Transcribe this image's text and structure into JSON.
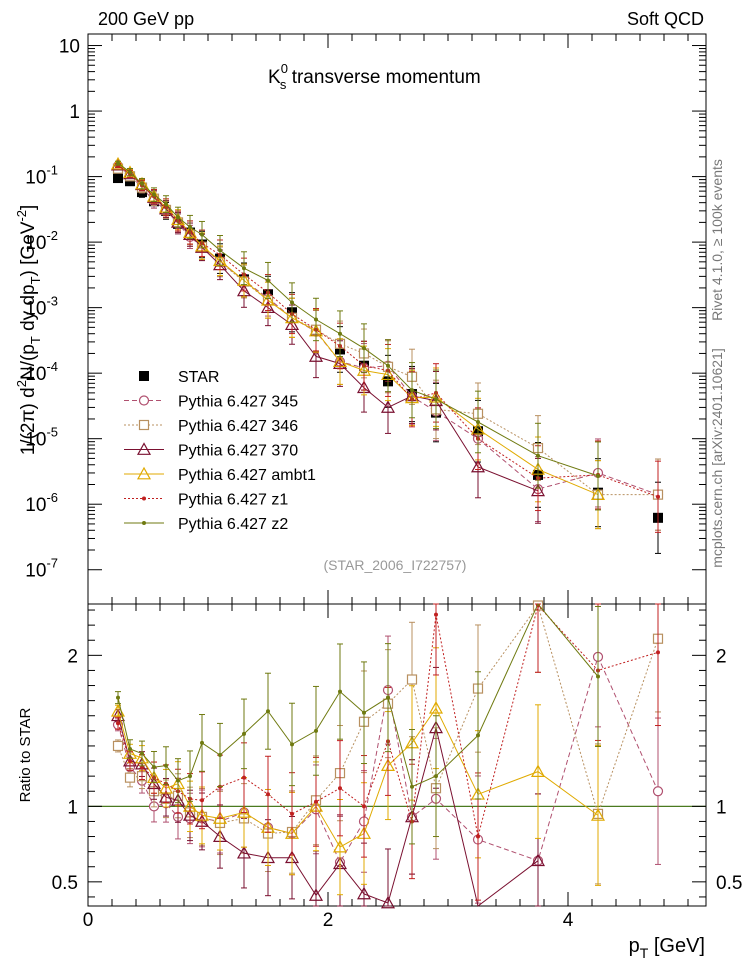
{
  "header": {
    "left": "200 GeV pp",
    "right": "Soft QCD"
  },
  "side_labels": {
    "rivet": "Rivet 4.1.0, ≥ 100k events",
    "mcplots": "mcplots.cern.ch [arXiv:2401.10621]"
  },
  "colors": {
    "STAR": "#000000",
    "p345": "#b0506f",
    "p346": "#b89060",
    "p370": "#7a1030",
    "ambt1": "#e0aa00",
    "z1": "#c02020",
    "z2": "#6f7a10"
  },
  "chart_data": [
    {
      "type": "scatter",
      "title_main": "K",
      "title_sup": "0",
      "title_sub": "s",
      "title_rest": " transverse momentum",
      "ylabel_parts": [
        "1/(2π)  d",
        "2",
        "N/(p",
        "T",
        " dy dp",
        "T",
        ") [GeV",
        "-2",
        "]"
      ],
      "yscale": "log",
      "ylim": [
        3e-08,
        15
      ],
      "xlim": [
        0,
        5.15
      ],
      "y_ticks": [
        {
          "v": 10,
          "base": "10",
          "exp": ""
        },
        {
          "v": 1,
          "base": "1",
          "exp": ""
        },
        {
          "v": 0.1,
          "base": "10",
          "exp": "-1"
        },
        {
          "v": 0.01,
          "base": "10",
          "exp": "-2"
        },
        {
          "v": 0.001,
          "base": "10",
          "exp": "-3"
        },
        {
          "v": 0.0001,
          "base": "10",
          "exp": "-4"
        },
        {
          "v": 1e-05,
          "base": "10",
          "exp": "-5"
        },
        {
          "v": 1e-06,
          "base": "10",
          "exp": "-6"
        },
        {
          "v": 1e-07,
          "base": "10",
          "exp": "-7"
        }
      ],
      "watermark": "(STAR_2006_I722757)",
      "legend_position": "lower-left",
      "series": [
        {
          "name": "STAR",
          "key": "STAR",
          "marker": "square-filled",
          "line": "none",
          "x": [
            0.25,
            0.35,
            0.45,
            0.55,
            0.65,
            0.75,
            0.85,
            0.95,
            1.1,
            1.3,
            1.5,
            1.7,
            1.9,
            2.1,
            2.3,
            2.5,
            2.7,
            2.9,
            3.25,
            3.75,
            4.25,
            4.75
          ],
          "y": [
            0.095,
            0.085,
            0.058,
            0.042,
            0.03,
            0.019,
            0.014,
            0.0092,
            0.0056,
            0.0027,
            0.0016,
            0.00085,
            0.00044,
            0.00023,
            0.00013,
            7.5e-05,
            4.8e-05,
            2.5e-05,
            1.3e-05,
            2.8e-06,
            1.5e-06,
            6.2e-07
          ]
        },
        {
          "name": "Pythia 6.427 345",
          "key": "p345",
          "marker": "circle-open",
          "line": "dashed",
          "x": [
            0.25,
            0.35,
            0.45,
            0.55,
            0.65,
            0.75,
            0.85,
            0.95,
            1.1,
            1.3,
            1.5,
            1.7,
            1.9,
            2.1,
            2.3,
            2.5,
            2.7,
            2.9,
            3.25,
            3.75,
            4.25,
            4.75
          ],
          "y": [
            0.145,
            0.105,
            0.068,
            0.042,
            0.031,
            0.019,
            0.012,
            0.0085,
            0.005,
            0.0026,
            0.0014,
            0.0007,
            0.00043,
            0.00015,
            0.00012,
            0.00013,
            4.4e-05,
            2.6e-05,
            1e-05,
            1.7e-06,
            3e-06,
            1.4e-06
          ]
        },
        {
          "name": "Pythia 6.427 346",
          "key": "p346",
          "marker": "square-open",
          "line": "dotted",
          "x": [
            0.25,
            0.35,
            0.45,
            0.55,
            0.65,
            0.75,
            0.85,
            0.95,
            1.1,
            1.3,
            1.5,
            1.7,
            1.9,
            2.1,
            2.3,
            2.5,
            2.7,
            2.9,
            3.25,
            3.75,
            4.25,
            4.75
          ],
          "y": [
            0.132,
            0.101,
            0.068,
            0.046,
            0.031,
            0.02,
            0.013,
            0.0085,
            0.005,
            0.0025,
            0.0013,
            0.0007,
            0.00046,
            0.00028,
            0.0002,
            0.000125,
            8.8e-05,
            2.8e-05,
            2.4e-05,
            7.2e-06,
            1.4e-06,
            1.4e-06
          ]
        },
        {
          "name": "Pythia 6.427 370",
          "key": "p370",
          "marker": "triangle-open",
          "line": "solid",
          "x": [
            0.25,
            0.35,
            0.45,
            0.55,
            0.65,
            0.75,
            0.85,
            0.95,
            1.1,
            1.3,
            1.5,
            1.7,
            1.9,
            2.1,
            2.3,
            2.5,
            2.7,
            2.9,
            3.25,
            3.75
          ],
          "y": [
            0.15,
            0.11,
            0.075,
            0.048,
            0.032,
            0.02,
            0.013,
            0.0083,
            0.0045,
            0.0018,
            0.001,
            0.00055,
            0.00018,
            0.00014,
            6e-05,
            3e-05,
            4.5e-05,
            3.8e-05,
            3.7e-06,
            1.6e-06
          ]
        },
        {
          "name": "Pythia 6.427 ambt1",
          "key": "ambt1",
          "marker": "triangle-open",
          "line": "solid",
          "x": [
            0.25,
            0.35,
            0.45,
            0.55,
            0.65,
            0.75,
            0.85,
            0.95,
            1.1,
            1.3,
            1.5,
            1.7,
            1.9,
            2.1,
            2.3,
            2.5,
            2.7,
            2.9,
            3.25,
            3.75,
            4.25
          ],
          "y": [
            0.155,
            0.115,
            0.077,
            0.05,
            0.034,
            0.022,
            0.014,
            0.0087,
            0.0052,
            0.0026,
            0.0013,
            0.0007,
            0.00044,
            0.00015,
            0.00011,
            9.5e-05,
            4.2e-05,
            4.3e-05,
            1.4e-05,
            3.4e-06,
            1.4e-06
          ]
        },
        {
          "name": "Pythia 6.427 z1",
          "key": "z1",
          "marker": "dot",
          "line": "dotted",
          "x": [
            0.25,
            0.35,
            0.45,
            0.55,
            0.65,
            0.75,
            0.85,
            0.95,
            1.1,
            1.3,
            1.5,
            1.7,
            1.9,
            2.1,
            2.3,
            2.5,
            2.7,
            2.9,
            3.25,
            3.75,
            4.25,
            4.75
          ],
          "y": [
            0.147,
            0.11,
            0.073,
            0.05,
            0.034,
            0.021,
            0.014,
            0.0096,
            0.0064,
            0.0032,
            0.0017,
            0.0008,
            0.00046,
            0.00026,
            0.00013,
            0.00011,
            4e-05,
            5e-05,
            1e-05,
            2.5e-06,
            2.8e-06,
            1.3e-06
          ]
        },
        {
          "name": "Pythia 6.427 z2",
          "key": "z2",
          "marker": "dot",
          "line": "solid",
          "x": [
            0.25,
            0.35,
            0.45,
            0.55,
            0.65,
            0.75,
            0.85,
            0.95,
            1.1,
            1.3,
            1.5,
            1.7,
            1.9,
            2.1,
            2.3,
            2.5,
            2.7,
            2.9,
            3.25,
            3.75,
            4.25
          ],
          "y": [
            0.16,
            0.117,
            0.078,
            0.053,
            0.038,
            0.024,
            0.017,
            0.013,
            0.0075,
            0.004,
            0.0026,
            0.0012,
            0.00066,
            0.0004,
            0.00024,
            0.00013,
            5.5e-05,
            4e-05,
            1.8e-05,
            5.5e-06,
            2.7e-06
          ]
        }
      ]
    },
    {
      "type": "scatter",
      "ylabel": "Ratio to STAR",
      "xlabel_main": "p",
      "xlabel_sub": "T",
      "xlabel_rest": " [GeV]",
      "ylim": [
        0.34,
        2.34
      ],
      "xlim": [
        0,
        5.15
      ],
      "x_ticks": [
        0,
        2,
        4
      ],
      "y_ticks": [
        {
          "v": 0.5,
          "label": "0.5"
        },
        {
          "v": 1,
          "label": "1"
        },
        {
          "v": 2,
          "label": "2"
        }
      ],
      "series": [
        {
          "name": "Pythia 6.427 345",
          "key": "p345",
          "marker": "circle-open",
          "line": "dashed",
          "x": [
            0.25,
            0.35,
            0.45,
            0.55,
            0.65,
            0.75,
            0.85,
            0.95,
            1.1,
            1.3,
            1.5,
            1.7,
            1.9,
            2.1,
            2.3,
            2.5,
            2.7,
            2.9,
            3.25,
            3.75,
            4.25,
            4.75
          ],
          "y": [
            1.54,
            1.26,
            1.17,
            1,
            1.02,
            0.93,
            0.92,
            0.92,
            0.9,
            0.96,
            0.86,
            0.82,
            0.98,
            0.63,
            0.9,
            1.77,
            0.93,
            1.05,
            0.78,
            0.64,
            1.99,
            1.1
          ]
        },
        {
          "name": "Pythia 6.427 346",
          "key": "p346",
          "marker": "square-open",
          "line": "dotted",
          "x": [
            0.25,
            0.35,
            0.45,
            0.55,
            0.65,
            0.75,
            0.85,
            0.95,
            1.1,
            1.3,
            1.5,
            1.7,
            1.9,
            2.1,
            2.3,
            2.5,
            2.7,
            2.9,
            3.25,
            3.75,
            4.25,
            4.75
          ],
          "y": [
            1.4,
            1.19,
            1.2,
            1.1,
            1.05,
            1.07,
            0.96,
            0.93,
            0.89,
            0.92,
            0.82,
            0.83,
            1.04,
            1.22,
            1.56,
            1.68,
            1.84,
            1.12,
            1.78,
            2.33,
            0.95,
            2.11
          ]
        },
        {
          "name": "Pythia 6.427 370",
          "key": "p370",
          "marker": "triangle-open",
          "line": "solid",
          "x": [
            0.25,
            0.35,
            0.45,
            0.55,
            0.65,
            0.75,
            0.85,
            0.95,
            1.1,
            1.3,
            1.5,
            1.7,
            1.9,
            2.1,
            2.3,
            2.5,
            2.7,
            2.9,
            3.25,
            3.75
          ],
          "y": [
            1.6,
            1.3,
            1.28,
            1.15,
            1.06,
            1.04,
            0.94,
            0.9,
            0.8,
            0.69,
            0.66,
            0.66,
            0.41,
            0.62,
            0.42,
            0.36,
            0.93,
            1.52,
            0.28,
            0.64
          ]
        },
        {
          "name": "Pythia 6.427 ambt1",
          "key": "ambt1",
          "marker": "triangle-open",
          "line": "solid",
          "x": [
            0.25,
            0.35,
            0.45,
            0.55,
            0.65,
            0.75,
            0.85,
            0.95,
            1.1,
            1.3,
            1.5,
            1.7,
            1.9,
            2.1,
            2.3,
            2.5,
            2.7,
            2.9,
            3.25,
            3.75,
            4.25
          ],
          "y": [
            1.63,
            1.35,
            1.32,
            1.19,
            1.12,
            1.15,
            1.0,
            0.94,
            0.92,
            0.96,
            0.86,
            0.82,
            1.0,
            0.73,
            0.82,
            1.27,
            1.42,
            1.65,
            1.08,
            1.23,
            0.94
          ]
        },
        {
          "name": "Pythia 6.427 z1",
          "key": "z1",
          "marker": "dot",
          "line": "dotted",
          "x": [
            0.25,
            0.35,
            0.45,
            0.55,
            0.65,
            0.75,
            0.85,
            0.95,
            1.1,
            1.3,
            1.5,
            1.7,
            1.9,
            2.1,
            2.3,
            2.5,
            2.7,
            2.9,
            3.25,
            3.75,
            4.25,
            4.75
          ],
          "y": [
            1.55,
            1.3,
            1.26,
            1.19,
            1.15,
            1.1,
            1.05,
            1.04,
            1.13,
            1.19,
            1.08,
            0.95,
            1.03,
            1.12,
            1.0,
            1.43,
            0.9,
            2.27,
            0.8,
            2.33,
            1.9,
            2.02
          ]
        },
        {
          "name": "Pythia 6.427 z2",
          "key": "z2",
          "marker": "dot",
          "line": "solid",
          "x": [
            0.25,
            0.35,
            0.45,
            0.55,
            0.65,
            0.75,
            0.85,
            0.95,
            1.1,
            1.3,
            1.5,
            1.7,
            1.9,
            2.1,
            2.3,
            2.5,
            2.7,
            2.9,
            3.25,
            3.75,
            4.25
          ],
          "y": [
            1.72,
            1.38,
            1.35,
            1.26,
            1.27,
            1.17,
            1.2,
            1.42,
            1.34,
            1.48,
            1.63,
            1.41,
            1.5,
            1.76,
            1.62,
            1.72,
            1.13,
            1.2,
            1.47,
            2.4,
            1.86
          ]
        }
      ]
    }
  ]
}
